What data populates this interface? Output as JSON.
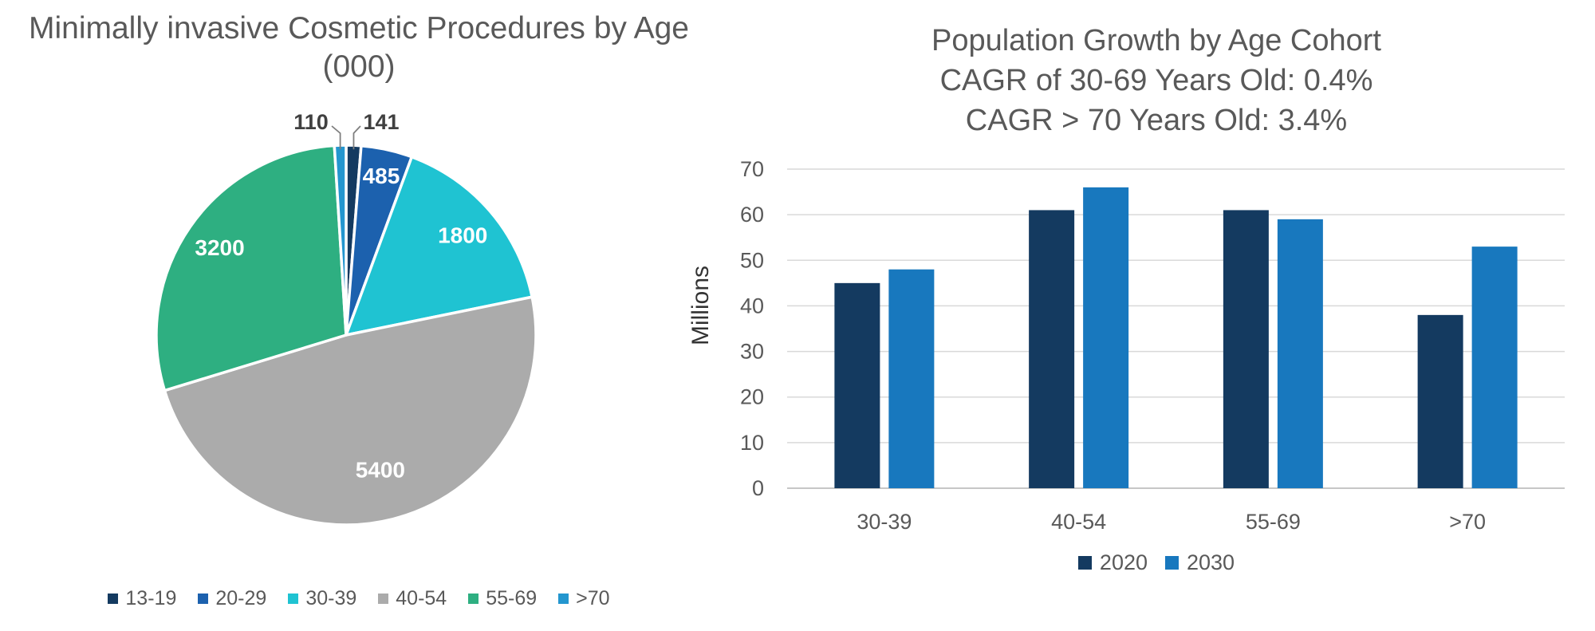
{
  "left_chart": {
    "title": "Minimally invasive Cosmetic Procedures by Age",
    "subtitle": "(000)"
  },
  "right_chart": {
    "title": "Population Growth by Age Cohort",
    "subtitle1": "CAGR of 30-69 Years Old: 0.4%",
    "subtitle2": "CAGR > 70 Years Old: 3.4%",
    "ylabel": "Millions"
  },
  "chart_data": [
    {
      "type": "pie",
      "title": "Minimally invasive Cosmetic Procedures by Age (000)",
      "categories": [
        "13-19",
        "20-29",
        "30-39",
        "40-54",
        "55-69",
        ">70"
      ],
      "values": [
        141,
        485,
        1800,
        5400,
        3200,
        110
      ],
      "colors": [
        "#143A60",
        "#1C61AE",
        "#1FC3D2",
        "#ABABAB",
        "#2EAF81",
        "#2396CF"
      ],
      "data_labels": [
        "141",
        "485",
        "1800",
        "5400",
        "3200",
        "110"
      ],
      "label_layout": [
        {
          "placement": "outside",
          "x": 478,
          "y": 152
        },
        {
          "placement": "inside",
          "r": 0.86
        },
        {
          "placement": "inside",
          "r": 0.81
        },
        {
          "placement": "inside",
          "r": 0.73
        },
        {
          "placement": "inside",
          "r": 0.81
        },
        {
          "placement": "outside",
          "x": 390,
          "y": 152
        }
      ],
      "legend_position": "bottom",
      "start_angle_deg": 0,
      "direction": "clockwise"
    },
    {
      "type": "bar",
      "title": "Population Growth by Age Cohort CAGR of 30-69 Years Old: 0.4% CAGR > 70 Years Old: 3.4%",
      "categories": [
        "30-39",
        "40-54",
        "55-69",
        ">70"
      ],
      "series": [
        {
          "name": "2020",
          "color": "#143A60",
          "values": [
            45,
            61,
            61,
            38
          ]
        },
        {
          "name": "2030",
          "color": "#1878BE",
          "values": [
            48,
            66,
            59,
            53
          ]
        }
      ],
      "xlabel": "",
      "ylabel": "Millions",
      "ylim": [
        0,
        70
      ],
      "ytick_step": 10,
      "yticks": [
        0,
        10,
        20,
        30,
        40,
        50,
        60,
        70
      ],
      "grid": true,
      "legend_position": "bottom"
    }
  ],
  "ui_colors": {
    "title_text": "#595959",
    "axis_text": "#595959",
    "gridline": "#D9D9D9",
    "axis_line": "#C6C6C6",
    "pie_inside_label": "#FFFFFF",
    "pie_outside_label": "#404040",
    "leader_line": "#7F7F7F"
  }
}
